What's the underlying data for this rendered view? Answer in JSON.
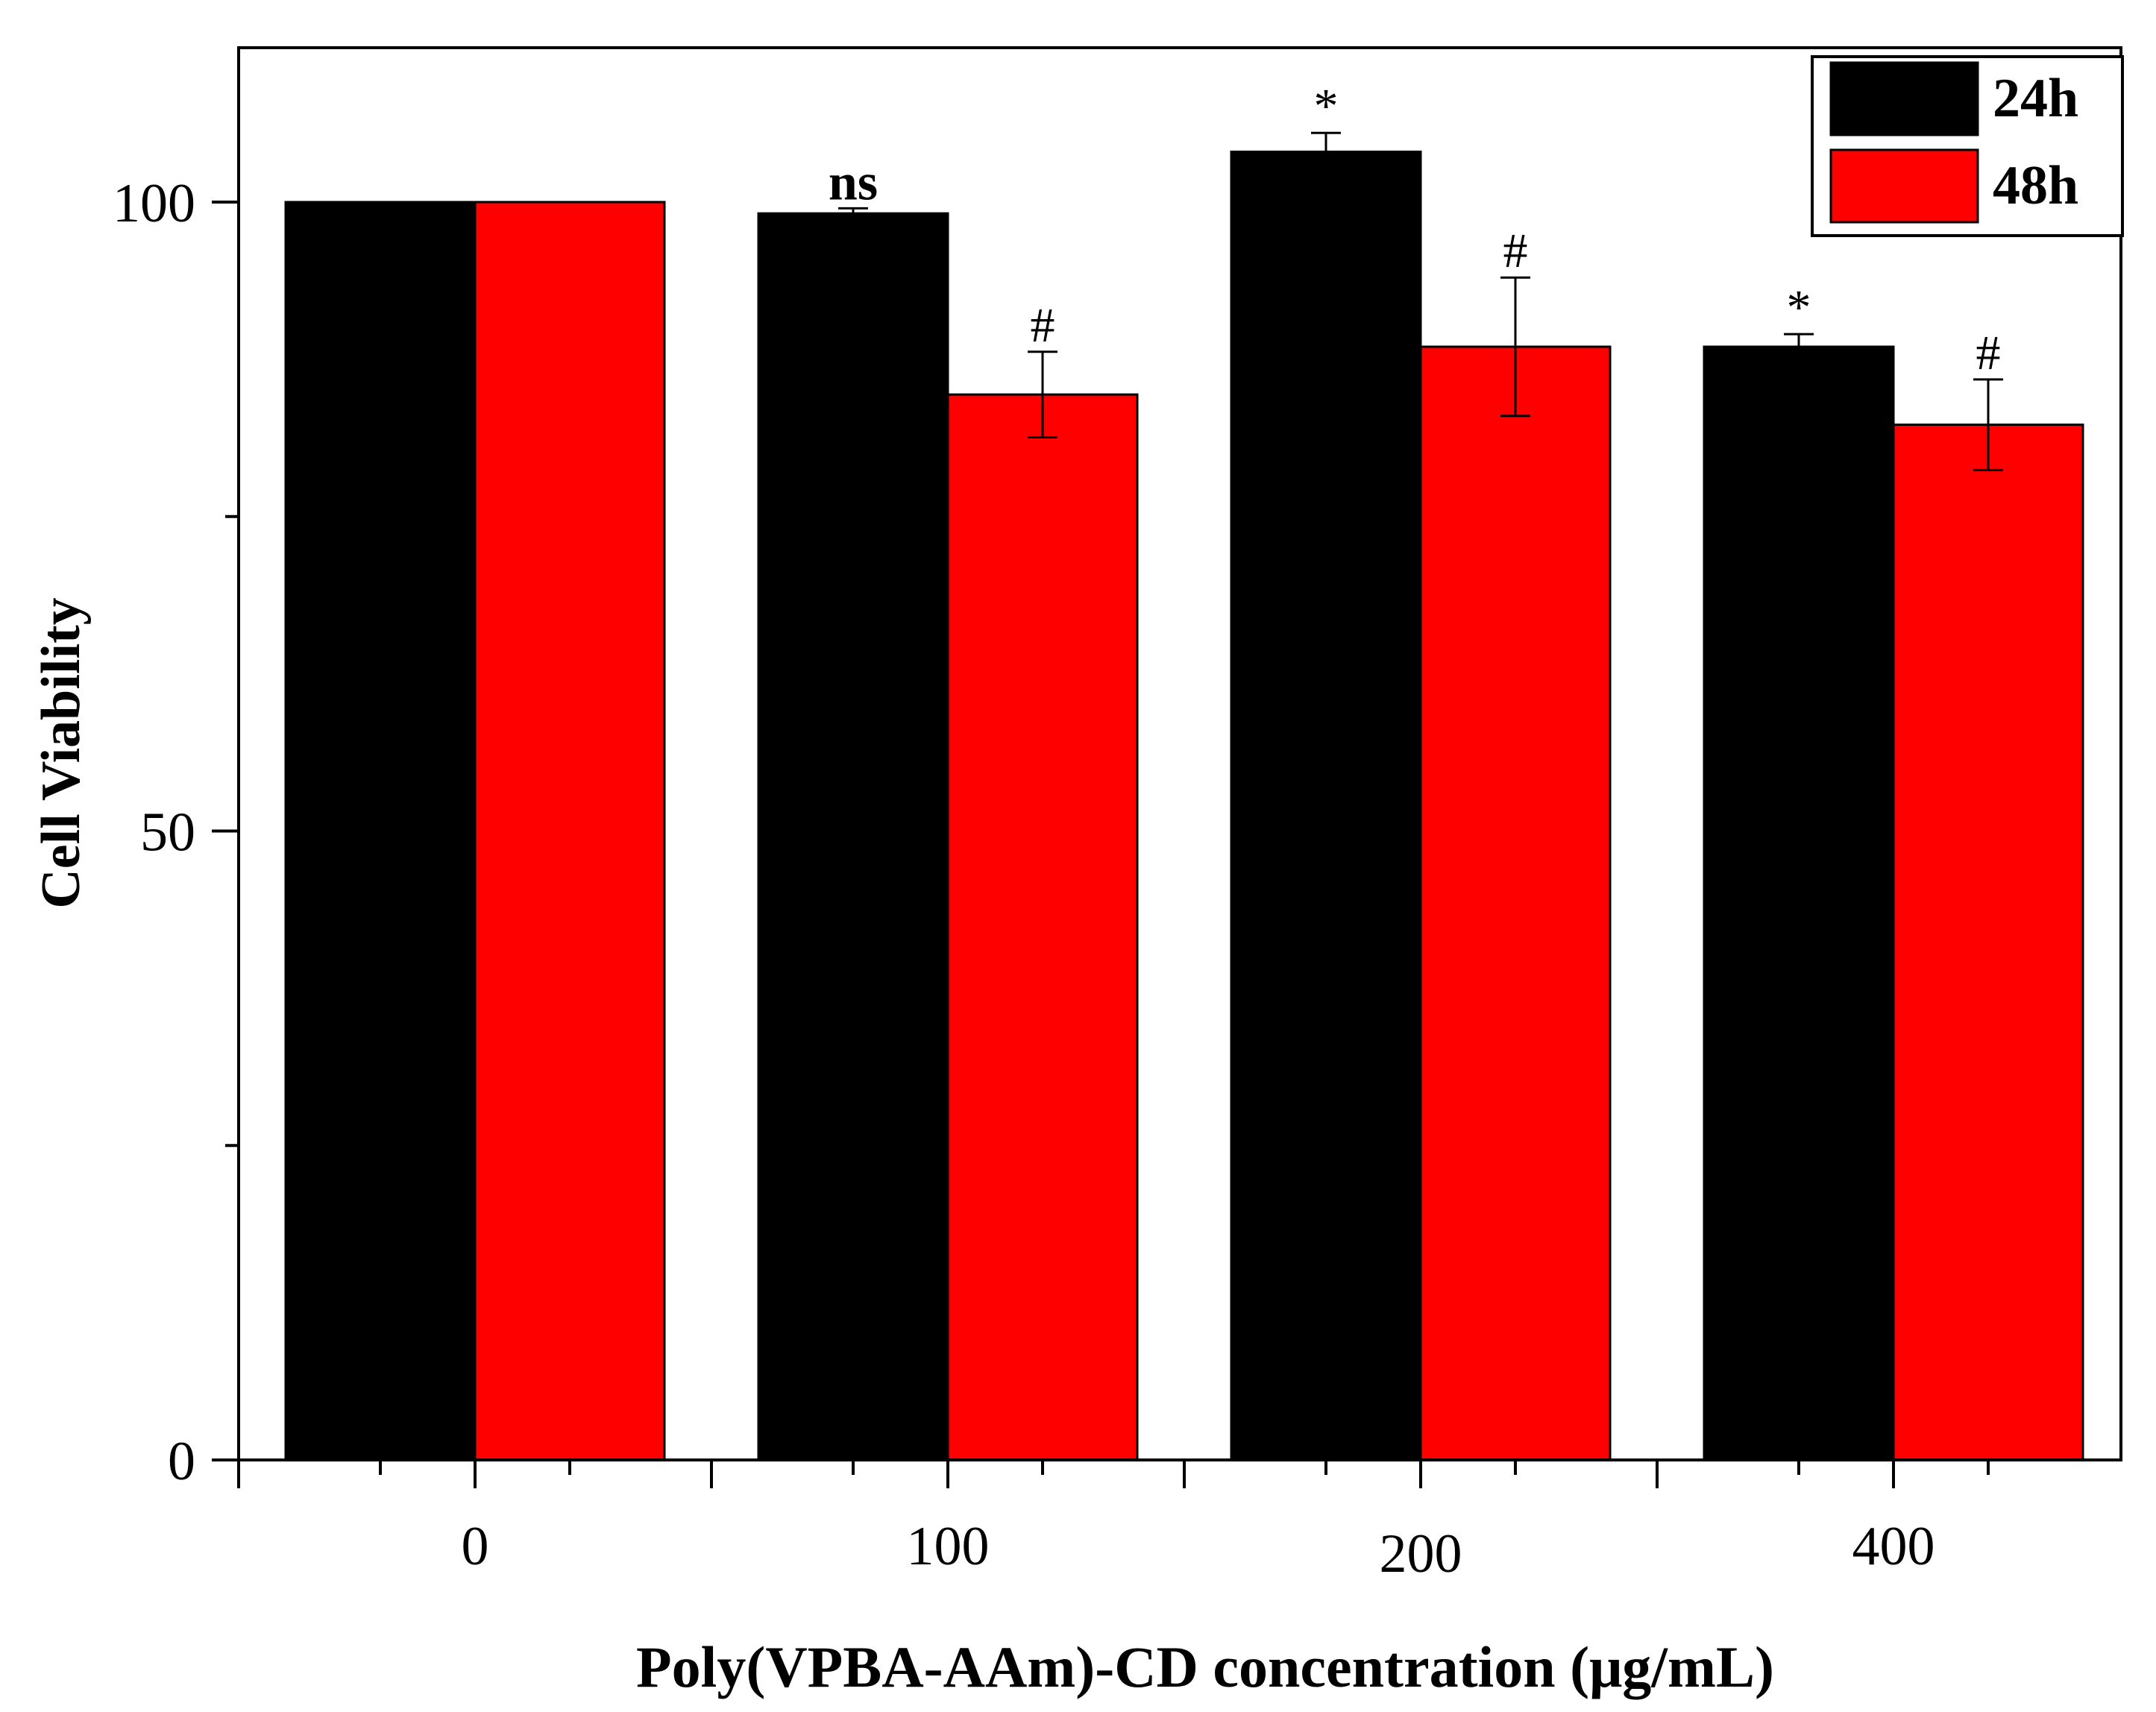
{
  "chart_data": {
    "type": "bar",
    "title": "",
    "xlabel": "Poly(VPBA-AAm)-CD concentration (μg/mL)",
    "ylabel": "Cell Viability",
    "categories": [
      "0",
      "100",
      "200",
      "400"
    ],
    "ylim": [
      0,
      110
    ],
    "yticks": [
      0,
      50,
      100
    ],
    "yticks_labeled": [
      "0",
      "50",
      "100"
    ],
    "y_minor_step": 25,
    "grid": false,
    "legend_position": "top-right",
    "series": [
      {
        "name": "24h",
        "color": "#000000",
        "values": [
          100,
          99.1,
          104,
          88.5
        ],
        "errors": [
          0,
          0.4,
          1.5,
          1.0
        ],
        "annotations": [
          "",
          "ns",
          "*",
          "*"
        ]
      },
      {
        "name": "48h",
        "color": "#ff0000",
        "values": [
          100,
          84.7,
          88.5,
          82.3
        ],
        "errors": [
          0,
          3.4,
          5.5,
          3.6
        ],
        "annotations": [
          "",
          "#",
          "#",
          "#"
        ]
      }
    ]
  }
}
